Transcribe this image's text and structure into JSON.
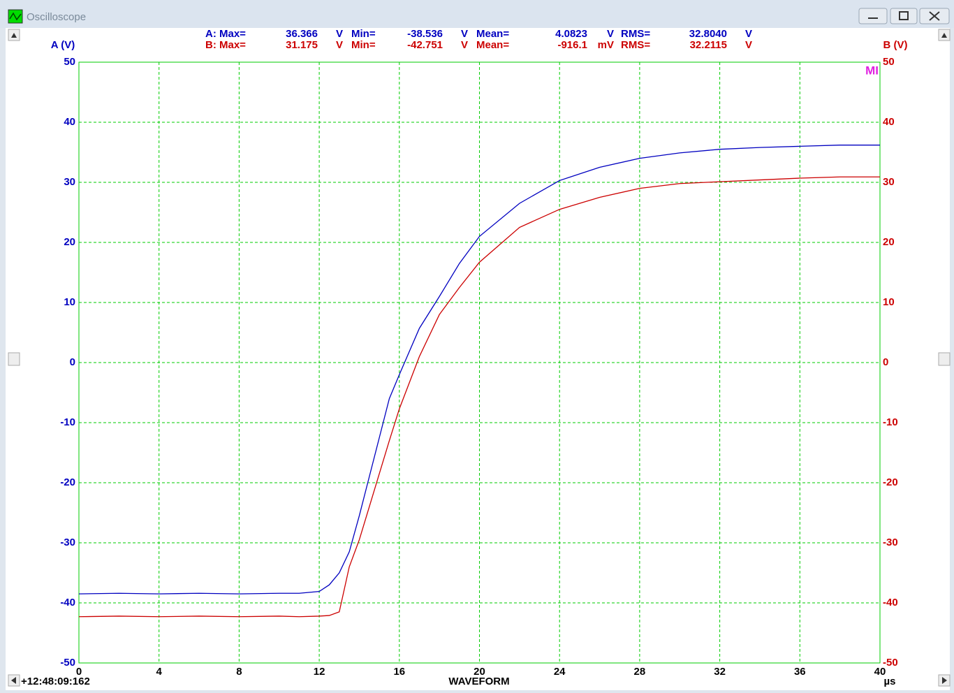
{
  "window": {
    "title": "Oscilloscope"
  },
  "stats": {
    "rows": [
      [
        "A: Max=",
        "36.366",
        "V",
        "Min=",
        "-38.536",
        "V",
        "Mean=",
        "4.0823",
        "V",
        "RMS=",
        "32.8040",
        "V"
      ],
      [
        "B: Max=",
        "31.175",
        "V",
        "Min=",
        "-42.751",
        "V",
        "Mean=",
        "-916.1",
        "mV",
        "RMS=",
        "32.2115",
        "V"
      ]
    ]
  },
  "timestamp": "+12:48:09:162",
  "marker": "MI",
  "chart_data": {
    "type": "line",
    "y_label": "A (V)",
    "y2_label": "B (V)",
    "x_label": "WAVEFORM",
    "x_unit": "µs",
    "x": [
      0,
      2,
      4,
      6,
      8,
      10,
      11,
      12,
      12.5,
      13,
      13.5,
      14,
      14.5,
      15,
      15.5,
      16,
      17,
      18,
      19,
      20,
      22,
      24,
      26,
      28,
      30,
      32,
      34,
      36,
      38,
      40
    ],
    "series": [
      {
        "name": "A",
        "color": "#0000c0",
        "values": [
          -38.5,
          -38.4,
          -38.5,
          -38.4,
          -38.5,
          -38.4,
          -38.4,
          -38.1,
          -37,
          -35,
          -31.5,
          -25.5,
          -19,
          -12.5,
          -6,
          -2,
          5.7,
          11,
          16.5,
          21,
          26.5,
          30.3,
          32.5,
          34,
          34.9,
          35.5,
          35.8,
          36,
          36.2,
          36.2
        ]
      },
      {
        "name": "B",
        "color": "#cc0000",
        "axis": "y2",
        "values": [
          -42.3,
          -42.2,
          -42.3,
          -42.2,
          -42.3,
          -42.2,
          -42.3,
          -42.2,
          -42.1,
          -41.5,
          -34,
          -29.5,
          -24,
          -18.5,
          -13,
          -7.7,
          1,
          8,
          12.5,
          16.7,
          22.5,
          25.5,
          27.5,
          29,
          29.8,
          30.1,
          30.4,
          30.7,
          30.9,
          30.9
        ]
      }
    ],
    "xlim": [
      0,
      40
    ],
    "xticks": [
      0,
      4,
      8,
      12,
      16,
      20,
      24,
      28,
      32,
      36,
      40
    ],
    "ylim": [
      -50,
      50
    ],
    "yticks": [
      -50,
      -40,
      -30,
      -20,
      -10,
      0,
      10,
      20,
      30,
      40,
      50
    ],
    "y2lim": [
      -50,
      50
    ],
    "y2ticks": [
      -50,
      -40,
      -30,
      -20,
      -10,
      0,
      10,
      20,
      30,
      40,
      50
    ],
    "grid": true,
    "grid_color": "#00cc00",
    "x_tick_color": "#000000",
    "marker_color": "#e020e0"
  }
}
